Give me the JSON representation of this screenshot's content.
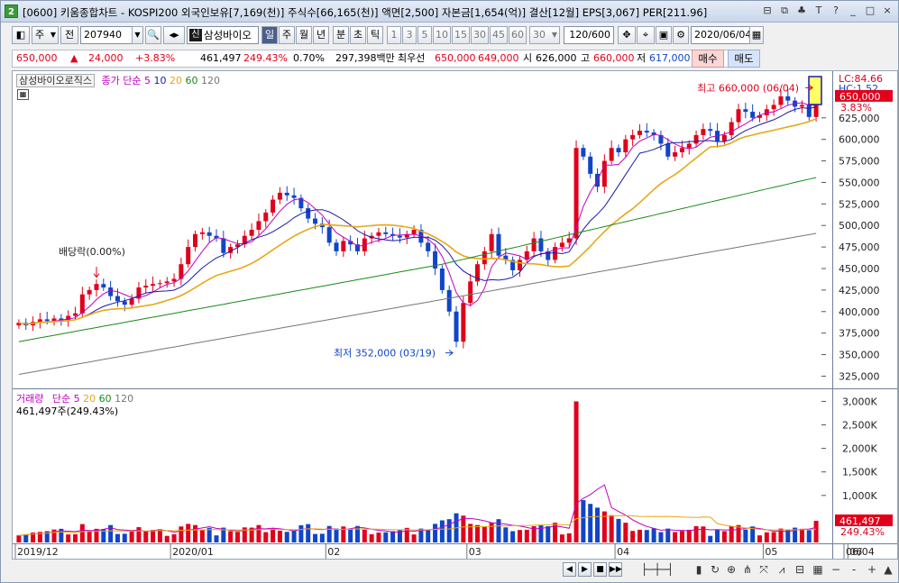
{
  "title": {
    "icon": "2",
    "text": "[0600] 키움종합차트 - KOSPI200 외국인보유[7,169(천)] 주식수[66,165(천)] 액면[2,500] 자본금[1,654(억)] 결산[12월] EPS[3,067] PER[211.96]",
    "controls": [
      "⊟",
      "⧉",
      "♣",
      "T",
      "?",
      "_",
      "□",
      "×"
    ]
  },
  "toolbar": {
    "period_type": "주",
    "market": "전",
    "code": "207940",
    "stock_name": "삼성바이오",
    "shin_badge": "신",
    "timeframes": [
      "일",
      "주",
      "월",
      "년",
      "분",
      "초",
      "틱"
    ],
    "minutes": [
      "1",
      "3",
      "5",
      "10",
      "15",
      "30",
      "45",
      "60"
    ],
    "minute_select": "30",
    "count": "120/600",
    "date": "2020/06/04",
    "icons": [
      "drag-icon",
      "crosshair-icon",
      "save-icon",
      "settings-icon"
    ]
  },
  "quote": {
    "price": "650,000",
    "arrow": "▲",
    "change": "24,000",
    "change_pct": "+3.83%",
    "volume": "461,497",
    "volume_ratio": "249.43%",
    "turnover": "0.70%",
    "amount": "297,398백만",
    "best_ask_label": "최우선",
    "ask": "650,000",
    "bid": "649,000",
    "open_label": "시",
    "open": "626,000",
    "high_label": "고",
    "high": "660,000",
    "low_label": "저",
    "low": "617,000",
    "buy_label": "매수",
    "sell_label": "매도"
  },
  "price_pane": {
    "stock_label": "삼성바이오로직스",
    "ma_title": "종가 단순",
    "ma_periods": [
      "5",
      "10",
      "20",
      "60",
      "120"
    ],
    "ma_colors": [
      "#c000c0",
      "#1a1aa8",
      "#e6a817",
      "#1a8a1a",
      "#777777"
    ],
    "lc": "LC:84.66",
    "hc": "HC:1.52",
    "current": "650,000",
    "current_pct": "3.83%",
    "annot_high": "최고 660,000 (06/04)",
    "annot_low": "최저 352,000 (03/19)",
    "annot_div": "배당락(0.00%)",
    "y_ticks": [
      "625,000",
      "600,000",
      "575,000",
      "550,000",
      "525,000",
      "500,000",
      "475,000",
      "450,000",
      "425,000",
      "400,000",
      "375,000",
      "350,000",
      "325,000"
    ]
  },
  "volume_pane": {
    "title": "거래량",
    "ma_title": "단순",
    "ma_periods": [
      "5",
      "20",
      "60",
      "120"
    ],
    "current_text": "461,497주(249.43%)",
    "current": "461,497",
    "current_pct": "249.43%",
    "y_ticks": [
      "3,000K",
      "2,500K",
      "2,000K",
      "1,500K",
      "1,000K"
    ]
  },
  "x_axis": {
    "labels": [
      "2019/12",
      "2020/01",
      "02",
      "03",
      "04",
      "05",
      "06",
      "06/04"
    ]
  },
  "bottom": {
    "nav": [
      "◀",
      "▶",
      "■",
      "▶▶"
    ],
    "icons": [
      "zoom-slider-icon",
      "bar-icon",
      "cycle-icon",
      "target-icon",
      "scale-icon",
      "fit-icon",
      "tile-icon",
      "minus-icon",
      "plus-icon",
      "up-icon"
    ]
  },
  "chart_data": {
    "type": "candlestick",
    "units": "KRW",
    "ylim": [
      315000,
      675000
    ],
    "series_close": [
      387000,
      384000,
      388000,
      391000,
      389000,
      392000,
      390000,
      395000,
      398000,
      420000,
      425000,
      432000,
      428000,
      418000,
      412000,
      408000,
      415000,
      428000,
      430000,
      432000,
      433000,
      435000,
      438000,
      455000,
      475000,
      490000,
      492000,
      488000,
      485000,
      468000,
      475000,
      478000,
      488000,
      495000,
      505000,
      515000,
      530000,
      538000,
      535000,
      532000,
      520000,
      508000,
      502000,
      498000,
      480000,
      470000,
      482000,
      478000,
      470000,
      485000,
      488000,
      492000,
      490000,
      488000,
      486000,
      490000,
      495000,
      480000,
      470000,
      450000,
      425000,
      400000,
      365000,
      410000,
      435000,
      455000,
      470000,
      490000,
      465000,
      460000,
      448000,
      460000,
      470000,
      485000,
      470000,
      460000,
      475000,
      480000,
      485000,
      590000,
      580000,
      560000,
      545000,
      575000,
      590000,
      585000,
      600000,
      605000,
      610000,
      608000,
      605000,
      595000,
      580000,
      585000,
      590000,
      595000,
      605000,
      612000,
      610000,
      598000,
      605000,
      620000,
      635000,
      632000,
      625000,
      628000,
      635000,
      640000,
      650000,
      645000,
      638000,
      640000,
      626000,
      650000
    ],
    "peak_volume": "3,000K",
    "high": 660000,
    "high_date": "06/04",
    "low": 352000,
    "low_date": "03/19"
  }
}
